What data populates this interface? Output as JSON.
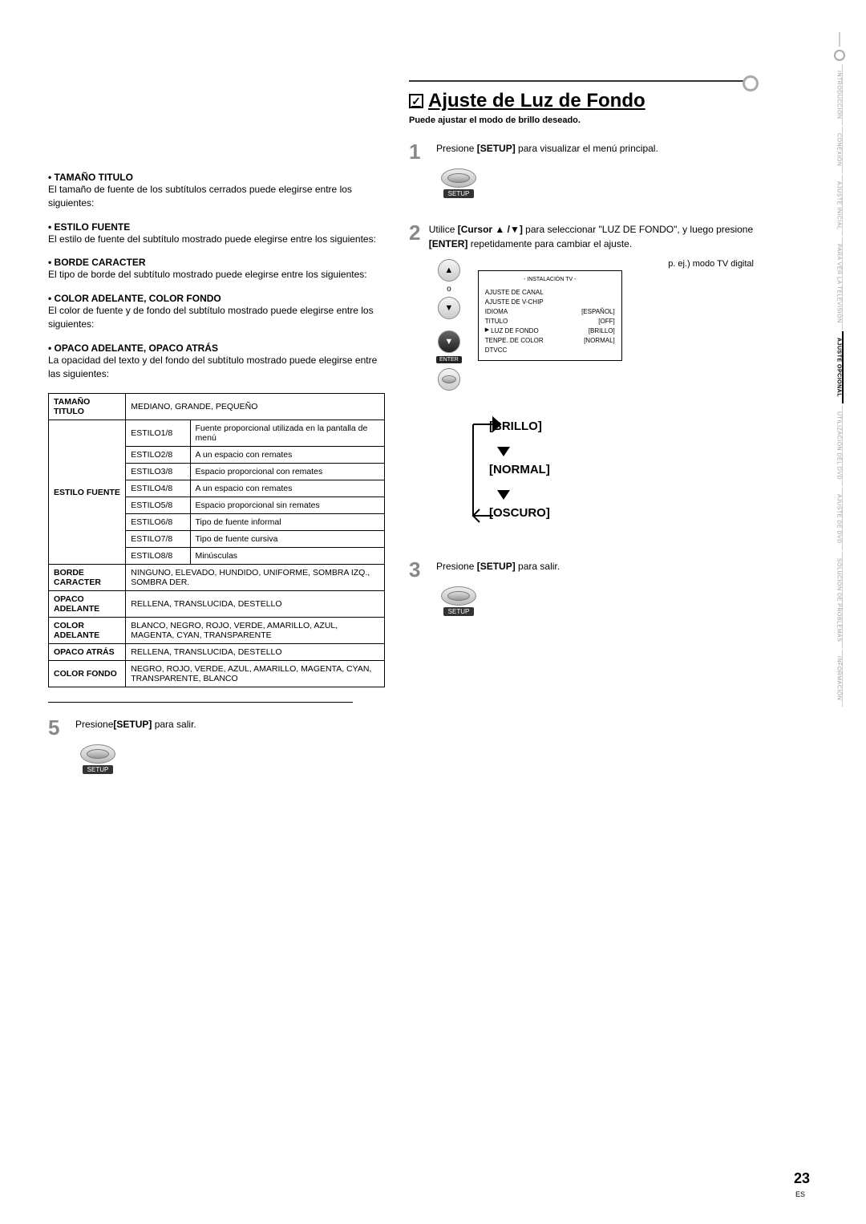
{
  "sidebar": {
    "tabs": [
      "INTRODUCCIÓN",
      "CONEXIÓN",
      "AJUSTE INICIAL",
      "PARA VER LA TELEVISIÓN",
      "AJUSTE OPCIONAL",
      "UTILIZACIÓN DEL DVD",
      "AJUSTE DE DVD",
      "SOLUCIÓN DE PROBLEMAS",
      "INFORMACIÓN"
    ]
  },
  "left": {
    "b1_title": "• TAMAÑO TITULO",
    "b1_desc": "El tamaño de fuente de los subtítulos cerrados puede elegirse entre los siguientes:",
    "b2_title": "• ESTILO FUENTE",
    "b2_desc": "El estilo de fuente del subtítulo mostrado puede elegirse entre los siguientes:",
    "b3_title": "• BORDE CARACTER",
    "b3_desc": "El tipo de borde del subtítulo mostrado puede elegirse entre los siguientes:",
    "b4_title": "• COLOR ADELANTE, COLOR FONDO",
    "b4_desc": "El color de fuente y de fondo  del subtítulo mostrado puede elegirse entre los siguientes:",
    "b5_title": "• OPACO ADELANTE, OPACO ATRÁS",
    "b5_desc": "La opacidad del texto y del fondo del subtítulo mostrado puede elegirse entre las siguientes:",
    "tbl": {
      "r1a": "TAMAÑO TITULO",
      "r1b": "MEDIANO, GRANDE, PEQUEÑO",
      "r_ef": "ESTILO FUENTE",
      "e1a": "ESTILO1/8",
      "e1b": "Fuente proporcional utilizada en la pantalla de menú",
      "e2a": "ESTILO2/8",
      "e2b": "A un espacio con remates",
      "e3a": "ESTILO3/8",
      "e3b": "Espacio proporcional con remates",
      "e4a": "ESTILO4/8",
      "e4b": "A un espacio con remates",
      "e5a": "ESTILO5/8",
      "e5b": "Espacio proporcional sin remates",
      "e6a": "ESTILO6/8",
      "e6b": "Tipo de fuente informal",
      "e7a": "ESTILO7/8",
      "e7b": "Tipo de fuente cursiva",
      "e8a": "ESTILO8/8",
      "e8b": "Minúsculas",
      "r_bc": "BORDE CARACTER",
      "r_bc_v": "NINGUNO, ELEVADO, HUNDIDO, UNIFORME, SOMBRA IZQ., SOMBRA DER.",
      "r_oa": "OPACO ADELANTE",
      "r_oa_v": "RELLENA, TRANSLUCIDA, DESTELLO",
      "r_ca": "COLOR ADELANTE",
      "r_ca_v": "BLANCO, NEGRO, ROJO, VERDE, AMARILLO, AZUL, MAGENTA, CYAN, TRANSPARENTE",
      "r_ob": "OPACO ATRÁS",
      "r_ob_v": "RELLENA, TRANSLUCIDA,  DESTELLO",
      "r_cf": "COLOR FONDO",
      "r_cf_v": "NEGRO, ROJO, VERDE, AZUL, AMARILLO, MAGENTA, CYAN, TRANSPARENTE, BLANCO"
    },
    "step5_pre": "Presione",
    "step5_setup": "[SETUP]",
    "step5_post": " para salir."
  },
  "right": {
    "title": "Ajuste de Luz de Fondo",
    "subtitle": "Puede ajustar el modo de brillo deseado.",
    "s1_pre": "Presione ",
    "s1_b": "[SETUP]",
    "s1_post": " para visualizar el menú principal.",
    "s2_pre": "Utilice ",
    "s2_b1": "[Cursor ▲ /▼]",
    "s2_mid": " para seleccionar \"LUZ DE FONDO\", y luego presione ",
    "s2_b2": "[ENTER]",
    "s2_post": " repetidamente para cambiar el ajuste.",
    "tv_caption": "p. ej.) modo TV digital",
    "menu_header": "- INSTALACIÓN TV -",
    "menu": [
      {
        "k": "AJUSTE DE CANAL",
        "v": ""
      },
      {
        "k": "AJUSTE DE V-CHIP",
        "v": ""
      },
      {
        "k": "IDIOMA",
        "v": "[ESPAÑOL]"
      },
      {
        "k": "TITULO",
        "v": "[OFF]"
      },
      {
        "k": "LUZ DE FONDO",
        "v": "[BRILLO]",
        "sel": true
      },
      {
        "k": "TENPE. DE COLOR",
        "v": "[NORMAL]"
      },
      {
        "k": "DTVCC",
        "v": ""
      }
    ],
    "cycle": [
      "[BRILLO]",
      "[NORMAL]",
      "[OSCURO]"
    ],
    "s3_pre": "Presione ",
    "s3_b": "[SETUP]",
    "s3_post": " para salir.",
    "btn_label": "SETUP",
    "enter_label": "ENTER",
    "o_label": "o"
  },
  "page": {
    "num": "23",
    "lang": "ES"
  }
}
